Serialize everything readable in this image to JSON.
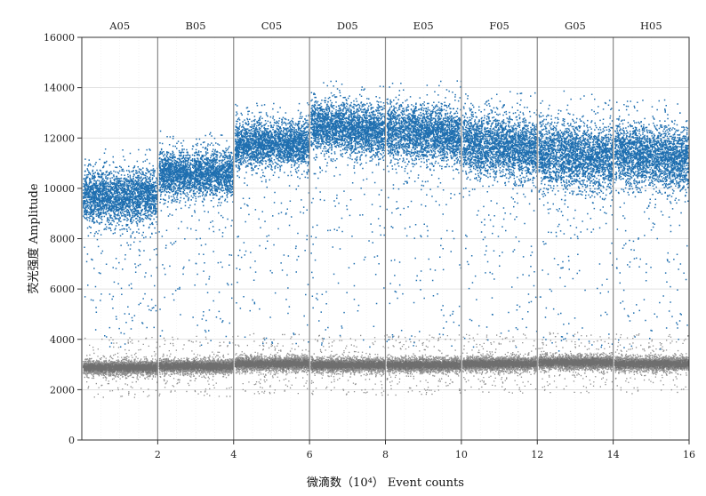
{
  "chart_data": {
    "type": "scatter",
    "title": "",
    "xlabel": "微滴数（10⁴） Event counts",
    "ylabel": "荧光强度 Amplitude",
    "xlim": [
      0,
      16
    ],
    "ylim": [
      0,
      16000
    ],
    "x_ticks": [
      2,
      4,
      6,
      8,
      10,
      12,
      14,
      16
    ],
    "y_ticks": [
      0,
      2000,
      4000,
      6000,
      8000,
      10000,
      12000,
      14000,
      16000
    ],
    "grid": true,
    "colors": {
      "positive": "#1f6fb0",
      "negative": "#6e6e6e",
      "divider": "#8a8a8a",
      "grid": "#d8d8d8"
    },
    "wells": [
      {
        "name": "A05",
        "x_start": 0,
        "x_end": 2,
        "positive_center": 9700,
        "positive_spread": 500,
        "negative_center": 2900
      },
      {
        "name": "B05",
        "x_start": 2,
        "x_end": 4,
        "positive_center": 10600,
        "positive_spread": 450,
        "negative_center": 2950
      },
      {
        "name": "C05",
        "x_start": 4,
        "x_end": 6,
        "positive_center": 11800,
        "positive_spread": 450,
        "negative_center": 3050
      },
      {
        "name": "D05",
        "x_start": 6,
        "x_end": 8,
        "positive_center": 12400,
        "positive_spread": 500,
        "negative_center": 3000
      },
      {
        "name": "E05",
        "x_start": 8,
        "x_end": 10,
        "positive_center": 12200,
        "positive_spread": 550,
        "negative_center": 3000
      },
      {
        "name": "F05",
        "x_start": 10,
        "x_end": 12,
        "positive_center": 11700,
        "positive_spread": 600,
        "negative_center": 3050
      },
      {
        "name": "G05",
        "x_start": 12,
        "x_end": 14,
        "positive_center": 11300,
        "positive_spread": 650,
        "negative_center": 3100
      },
      {
        "name": "H05",
        "x_start": 14,
        "x_end": 16,
        "positive_center": 11300,
        "positive_spread": 600,
        "negative_center": 3050
      }
    ]
  }
}
